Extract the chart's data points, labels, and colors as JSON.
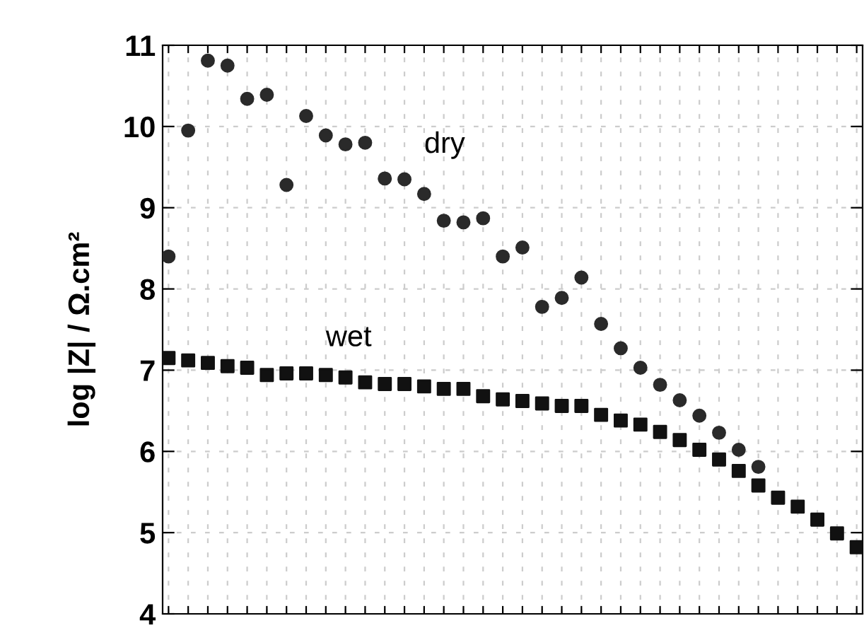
{
  "chart_data": {
    "type": "scatter",
    "ylabel": "log |Z| / Ω.cm²",
    "categories": [
      null,
      null,
      null,
      null,
      null,
      null,
      null,
      null,
      null,
      null,
      null,
      null,
      null,
      null,
      null,
      null,
      null,
      null,
      null,
      null,
      null,
      null,
      null,
      null,
      null,
      null,
      null,
      null,
      null,
      null,
      null,
      null,
      null,
      null,
      null,
      null
    ],
    "series": [
      {
        "name": "dry",
        "color": "#2a2a2a",
        "marker": "circle",
        "values": [
          8.4,
          9.95,
          10.81,
          10.75,
          10.34,
          10.39,
          9.28,
          10.13,
          9.89,
          9.78,
          9.8,
          9.36,
          9.35,
          9.17,
          8.84,
          8.82,
          8.87,
          8.4,
          8.51,
          7.78,
          7.89,
          8.14,
          7.57,
          7.27,
          7.03,
          6.82,
          6.63,
          6.44,
          6.23,
          6.02,
          5.81,
          null,
          null,
          null,
          null,
          null
        ]
      },
      {
        "name": "wet",
        "color": "#111111",
        "marker": "square",
        "values": [
          7.15,
          7.12,
          7.09,
          7.05,
          7.03,
          6.94,
          6.96,
          6.96,
          6.94,
          6.91,
          6.85,
          6.83,
          6.83,
          6.8,
          6.77,
          6.77,
          6.68,
          6.64,
          6.62,
          6.59,
          6.56,
          6.56,
          6.45,
          6.38,
          6.33,
          6.24,
          6.14,
          6.02,
          5.9,
          5.76,
          5.58,
          5.43,
          5.32,
          5.16,
          4.99,
          4.82
        ]
      }
    ],
    "ylim": [
      4,
      11
    ],
    "yticks": [
      4,
      5,
      6,
      7,
      8,
      9,
      10,
      11
    ],
    "grid": true
  }
}
